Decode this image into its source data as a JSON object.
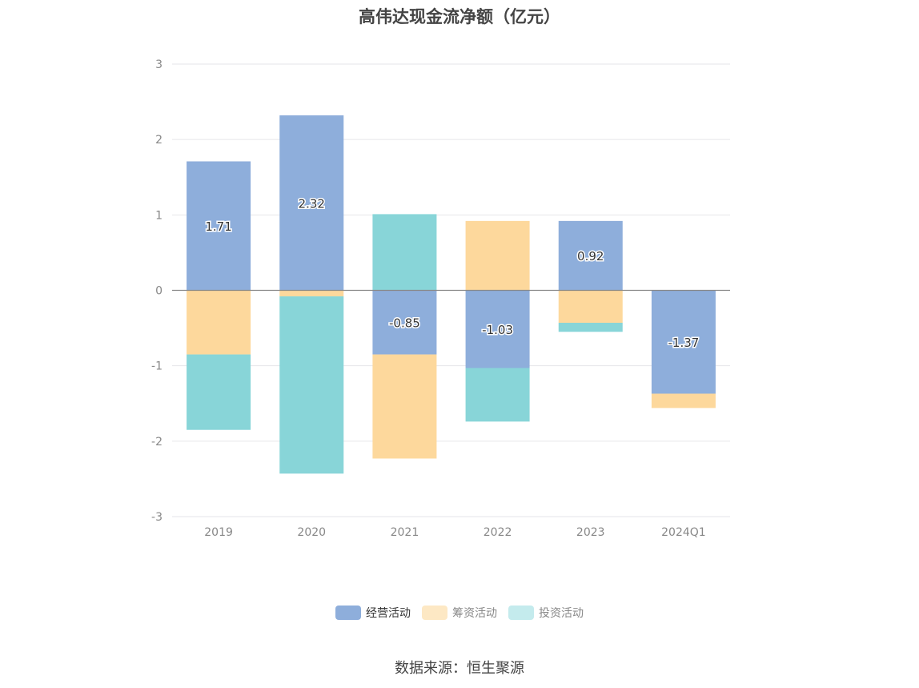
{
  "title": "高伟达现金流净额（亿元）",
  "source": "数据来源：恒生聚源",
  "colors": {
    "operating": "#8eaedb",
    "financing": "#fdd89c",
    "investing": "#88d5d8",
    "legend_financing": "#fde8c4",
    "legend_investing": "#c4ebed"
  },
  "chart_data": {
    "type": "bar",
    "stacked": true,
    "title": "高伟达现金流净额（亿元）",
    "categories": [
      "2019",
      "2020",
      "2021",
      "2022",
      "2023",
      "2024Q1"
    ],
    "ylim": [
      -3,
      3
    ],
    "yticks": [
      "3",
      "2",
      "1",
      "0",
      "-1",
      "-2",
      "-3"
    ],
    "ytick_values": [
      3,
      2,
      1,
      0,
      -1,
      -2,
      -3
    ],
    "grid": true,
    "legend_position": "bottom",
    "series": [
      {
        "name": "经营活动",
        "key": "operating",
        "values": [
          1.71,
          2.32,
          -0.85,
          -1.03,
          0.92,
          -1.37
        ],
        "labels": [
          "1.71",
          "2.32",
          "-0.85",
          "-1.03",
          "0.92",
          "-1.37"
        ]
      },
      {
        "name": "筹资活动",
        "key": "financing",
        "values": [
          -0.85,
          -0.08,
          -1.38,
          0.92,
          -0.43,
          -0.19
        ]
      },
      {
        "name": "投资活动",
        "key": "investing",
        "values": [
          -1.0,
          -2.35,
          1.01,
          -0.71,
          -0.12,
          0.0
        ]
      }
    ]
  },
  "legend": [
    {
      "label": "经营活动",
      "key": "operating"
    },
    {
      "label": "筹资活动",
      "key": "legend_financing"
    },
    {
      "label": "投资活动",
      "key": "legend_investing"
    }
  ]
}
